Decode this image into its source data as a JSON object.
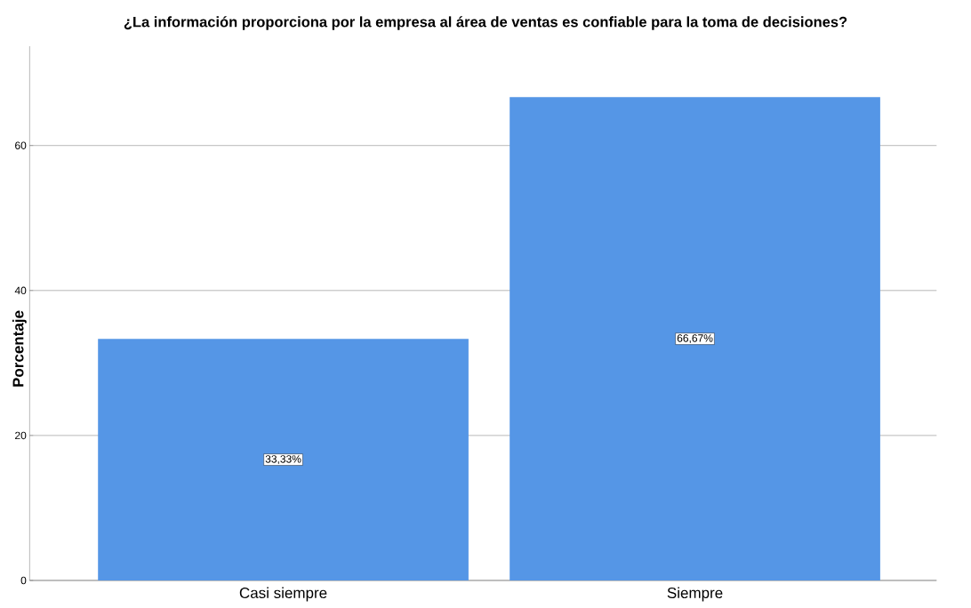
{
  "chart_data": {
    "type": "bar",
    "title": "¿La información proporciona por la empresa al área de ventas es confiable para la toma de decisiones?",
    "ylabel": "Porcentaje",
    "categories": [
      "Casi siempre",
      "Siempre"
    ],
    "values": [
      33.33,
      66.67
    ],
    "value_labels": [
      "33,33%",
      "66,67%"
    ],
    "color": "#5596e6",
    "ylim": [
      0,
      73.7
    ],
    "yticks": [
      0,
      20,
      40,
      60
    ],
    "grid": "y"
  }
}
